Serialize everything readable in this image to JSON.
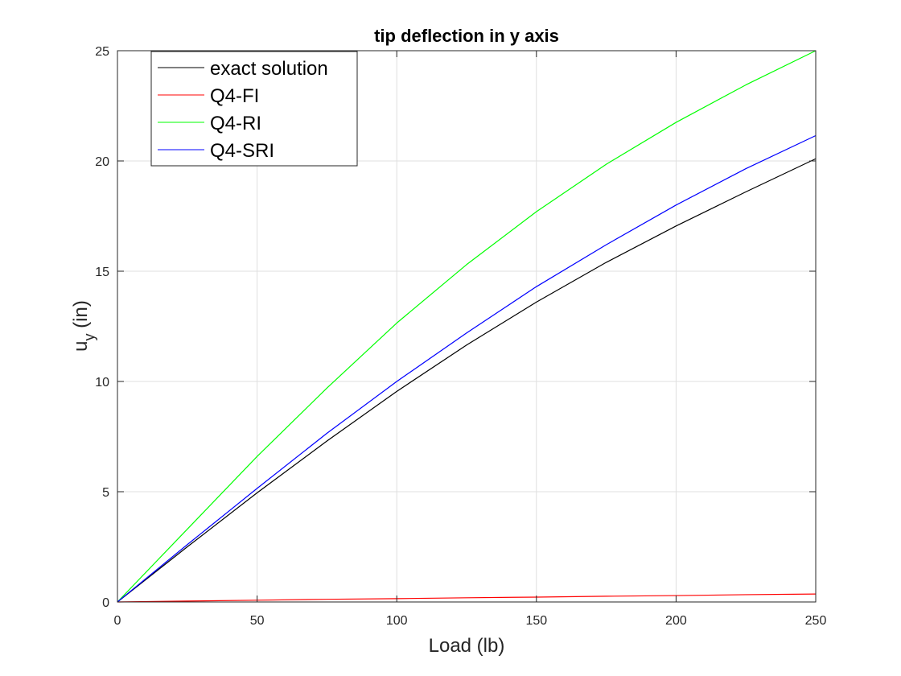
{
  "chart_data": {
    "type": "line",
    "title": "tip deflection in y axis",
    "xlabel": "Load (lb)",
    "ylabel_main": "u",
    "ylabel_sub": "y",
    "ylabel_unit": " (in)",
    "xlim": [
      0,
      250
    ],
    "ylim": [
      0,
      25
    ],
    "xticks": [
      0,
      50,
      100,
      150,
      200,
      250
    ],
    "yticks": [
      0,
      5,
      10,
      15,
      20,
      25
    ],
    "grid": true,
    "legend_position": "top-left",
    "x": [
      0,
      25,
      50,
      75,
      100,
      125,
      150,
      175,
      200,
      225,
      250
    ],
    "series": [
      {
        "name": "exact solution",
        "color": "#000000",
        "values": [
          0,
          2.5,
          4.95,
          7.3,
          9.55,
          11.65,
          13.6,
          15.4,
          17.05,
          18.6,
          20.1
        ]
      },
      {
        "name": "Q4-FI",
        "color": "#ff0000",
        "values": [
          0,
          0.04,
          0.08,
          0.12,
          0.15,
          0.19,
          0.22,
          0.26,
          0.29,
          0.33,
          0.36
        ]
      },
      {
        "name": "Q4-RI",
        "color": "#00ff00",
        "values": [
          0,
          3.3,
          6.6,
          9.7,
          12.65,
          15.3,
          17.7,
          19.85,
          21.75,
          23.45,
          25.0
        ]
      },
      {
        "name": "Q4-SRI",
        "color": "#0000ff",
        "values": [
          0,
          2.6,
          5.15,
          7.65,
          10.0,
          12.2,
          14.3,
          16.2,
          18.0,
          19.65,
          21.15
        ]
      }
    ]
  }
}
